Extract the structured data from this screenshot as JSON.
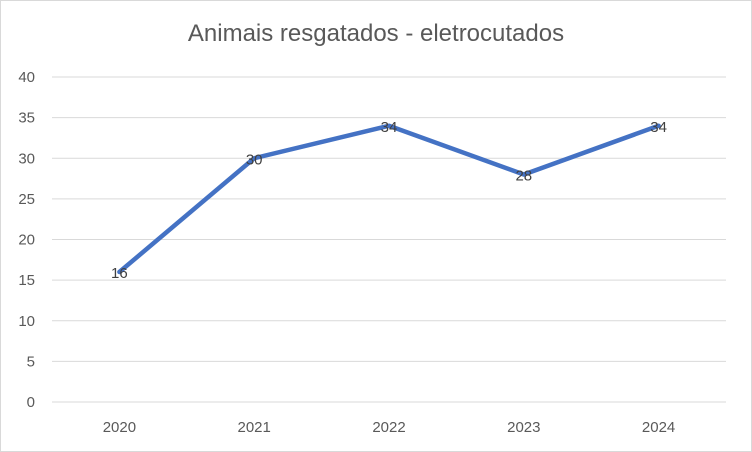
{
  "chart_data": {
    "type": "line",
    "title": "Animais resgatados - eletrocutados",
    "categories": [
      "2020",
      "2021",
      "2022",
      "2023",
      "2024"
    ],
    "series": [
      {
        "values": [
          16,
          30,
          34,
          28,
          34
        ],
        "color": "#4472c4"
      }
    ],
    "ylim": [
      0,
      40
    ],
    "yticks": [
      0,
      5,
      10,
      15,
      20,
      25,
      30,
      35,
      40
    ],
    "grid": true,
    "data_labels": true,
    "legend": "none",
    "xlabel": "",
    "ylabel": ""
  }
}
